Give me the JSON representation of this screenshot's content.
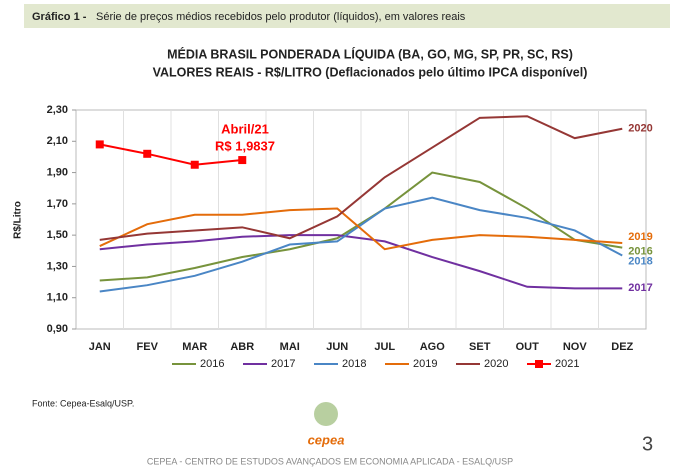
{
  "chart_data": {
    "type": "line",
    "header_label": "Gráfico 1 -",
    "header": "Série de preços médios recebidos pelo produtor (líquidos), em valores reais",
    "title": "MÉDIA BRASIL PONDERADA LÍQUIDA (BA, GO, MG, SP, PR, SC, RS)",
    "subtitle": "VALORES REAIS - R$/LITRO (Deflacionados pelo último IPCA disponível)",
    "y_label": "R$/Litro",
    "categories": [
      "JAN",
      "FEV",
      "MAR",
      "ABR",
      "MAI",
      "JUN",
      "JUL",
      "AGO",
      "SET",
      "OUT",
      "NOV",
      "DEZ"
    ],
    "series": [
      {
        "name": "2016",
        "color": "#77933c",
        "values": [
          1.21,
          1.23,
          1.29,
          1.36,
          1.41,
          1.48,
          1.67,
          1.9,
          1.84,
          1.67,
          1.47,
          1.42
        ]
      },
      {
        "name": "2017",
        "color": "#7030a0",
        "values": [
          1.41,
          1.44,
          1.46,
          1.49,
          1.5,
          1.5,
          1.46,
          1.36,
          1.27,
          1.17,
          1.16,
          1.16
        ]
      },
      {
        "name": "2018",
        "color": "#4a86c5",
        "values": [
          1.14,
          1.18,
          1.24,
          1.33,
          1.44,
          1.46,
          1.67,
          1.74,
          1.66,
          1.61,
          1.53,
          1.37
        ]
      },
      {
        "name": "2019",
        "color": "#e46c0a",
        "values": [
          1.43,
          1.57,
          1.63,
          1.63,
          1.66,
          1.67,
          1.41,
          1.47,
          1.5,
          1.49,
          1.47,
          1.45
        ]
      },
      {
        "name": "2020",
        "color": "#953735",
        "values": [
          1.47,
          1.51,
          1.53,
          1.55,
          1.48,
          1.62,
          1.87,
          2.06,
          2.25,
          2.26,
          2.12,
          2.18
        ]
      },
      {
        "name": "2021",
        "color": "#ff0000",
        "marker": "square",
        "values": [
          2.08,
          2.02,
          1.95,
          1.98,
          null,
          null,
          null,
          null,
          null,
          null,
          null,
          null
        ]
      }
    ],
    "annotations": [
      "Abril/21",
      "R$ 1,9837"
    ],
    "ylim": [
      0.9,
      2.3
    ],
    "yticks": [
      {
        "value": 0.9,
        "label": "0,90"
      },
      {
        "value": 1.1,
        "label": "1,10"
      },
      {
        "value": 1.3,
        "label": "1,30"
      },
      {
        "value": 1.5,
        "label": "1,50"
      },
      {
        "value": 1.7,
        "label": "1,70"
      },
      {
        "value": 1.9,
        "label": "1,90"
      },
      {
        "value": 2.1,
        "label": "2,10"
      },
      {
        "value": 2.3,
        "label": "2,30"
      }
    ],
    "grid": false,
    "legend": "bottom",
    "source": "Fonte: Cepea-Esalq/USP.",
    "logo": "cepea",
    "footer": "CEPEA - CENTRO DE ESTUDOS AVANÇADOS EM ECONOMIA APLICADA - ESALQ/USP",
    "page": "3"
  }
}
